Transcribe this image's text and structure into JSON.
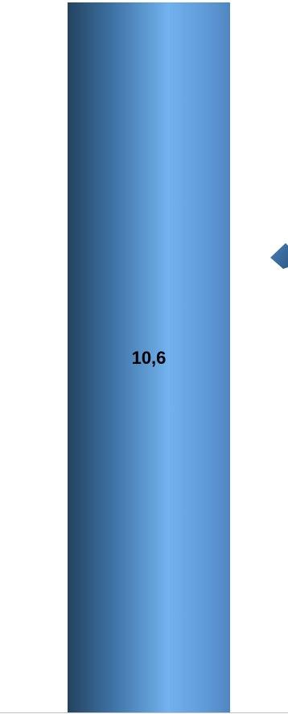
{
  "chart_data": {
    "type": "bar",
    "categories": [
      ""
    ],
    "values": [
      10.6
    ],
    "data_labels": [
      "10,6"
    ],
    "title": "",
    "xlabel": "",
    "ylabel": "",
    "ylim": [
      0,
      10.6
    ],
    "grid": false,
    "legend": "none",
    "colors": {
      "bar_dark": "#24435f",
      "bar_mid": "#3e73a6",
      "bar_light": "#72b2ee",
      "bar_edge": "#4f86c0",
      "marker": "#4a7fb8",
      "marker_dark": "#2f5c8a",
      "baseline": "#bfbfbf",
      "label": "#000000"
    }
  }
}
